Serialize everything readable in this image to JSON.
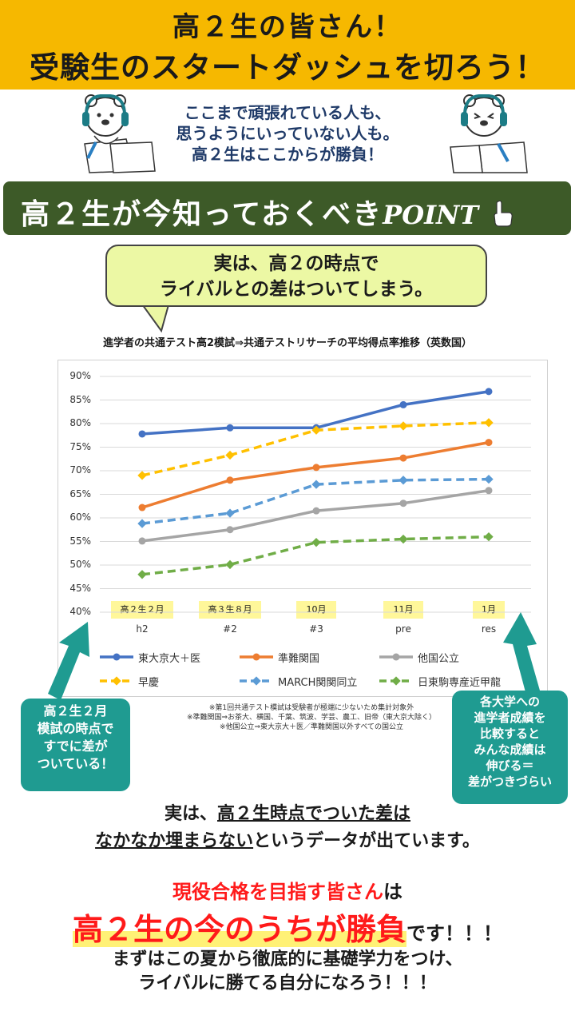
{
  "banner": {
    "line1": "高２生の皆さん！",
    "line2": "受験生のスタートダッシュを切ろう！"
  },
  "intro": {
    "line1": "ここまで頑張れている人も、",
    "line2": "思うようにいっていない人も。",
    "line3": "高２生はここからが勝負！"
  },
  "point_bar": {
    "text": "高２生が今知っておくべき",
    "point_word": "POINT"
  },
  "bubble": {
    "line1": "実は、高２の時点で",
    "line2": "ライバルとの差はついてしまう。"
  },
  "chart_title": "進学者の共通テスト高2模試⇒共通テストリサーチの平均得点率推移（英数国）",
  "chart_data": {
    "type": "line",
    "title": "進学者の共通テスト高2模試⇒共通テストリサーチの平均得点率推移（英数国）",
    "x": [
      "h2",
      "#2",
      "#3",
      "pre",
      "res"
    ],
    "category_labels": [
      "高２生２月",
      "高３生８月",
      "10月",
      "11月",
      "1月"
    ],
    "ylim": [
      40,
      90
    ],
    "y_ticks": [
      "90%",
      "85%",
      "80%",
      "75%",
      "70%",
      "65%",
      "60%",
      "55%",
      "50%",
      "45%",
      "40%"
    ],
    "grid": true,
    "legend_position": "bottom",
    "series": [
      {
        "name": "東大京大＋医",
        "color": "#4472c4",
        "dashed": false,
        "values": [
          77.8,
          79.1,
          79.1,
          84.0,
          86.8
        ]
      },
      {
        "name": "準難関国",
        "color": "#ed7d31",
        "dashed": false,
        "values": [
          62.2,
          68.0,
          70.7,
          72.7,
          76.0
        ]
      },
      {
        "name": "他国公立",
        "color": "#a5a5a5",
        "dashed": false,
        "values": [
          55.1,
          57.5,
          61.5,
          63.1,
          65.8
        ]
      },
      {
        "name": "早慶",
        "color": "#ffc000",
        "dashed": true,
        "values": [
          69.0,
          73.3,
          78.6,
          79.5,
          80.2
        ]
      },
      {
        "name": "MARCH関関同立",
        "color": "#5b9bd5",
        "dashed": true,
        "values": [
          58.8,
          61.0,
          67.1,
          68.0,
          68.2
        ]
      },
      {
        "name": "日東駒専産近甲龍",
        "color": "#70ad47",
        "dashed": true,
        "values": [
          48.0,
          50.1,
          54.8,
          55.5,
          56.0
        ]
      }
    ]
  },
  "notes": {
    "n1": "※第1回共通テスト模試は受験者が極端に少ないため集計対象外",
    "n2": "※準難関国⇒お茶大、横国、千葉、筑波、学芸、農工、旧帝（東大京大除く）",
    "n3": "※他国公立⇒東大京大＋医／準難関国以外すべての国公立"
  },
  "callout_left": {
    "line1": "高２生２月",
    "line2": "模試の時点で",
    "line3": "すでに差が",
    "line4": "ついている！"
  },
  "callout_right": {
    "line1": "各大学への",
    "line2": "進学者成績を",
    "line3": "比較すると",
    "line4": "みんな成績は",
    "line5": "伸びる＝",
    "line6": "差がつきづらい"
  },
  "body": {
    "l1_a": "実は、",
    "l1_b": "高２生時点でついた差は",
    "l2_a": "なかなか埋まらない",
    "l2_b": "というデータが出ています。",
    "l3_a": "現役合格を目指す皆さん",
    "l3_b": "は",
    "l4_a": "高２生の今のうちが勝負",
    "l4_b": "です！！！",
    "l5": "まずはこの夏から徹底的に基礎学力をつけ、",
    "l6": "ライバルに勝てる自分になろう！！！"
  },
  "colors": {
    "banner": "#f6b800",
    "point_bar": "#3d5a28",
    "bubble": "#ecf8a4",
    "callout": "#1f9b91",
    "accent_red": "#ff1a1a",
    "highlight": "#fff176"
  }
}
